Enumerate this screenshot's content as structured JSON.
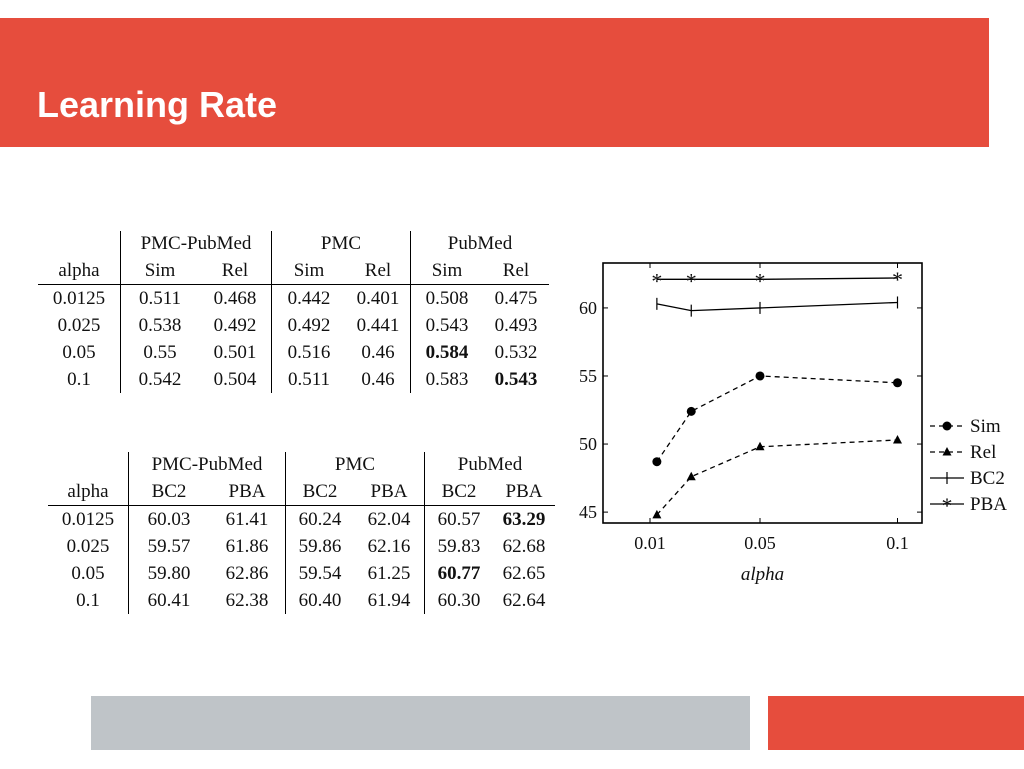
{
  "slide": {
    "title": "Learning Rate"
  },
  "table1": {
    "alpha_header": "alpha",
    "groups": [
      {
        "name": "PMC-PubMed",
        "cols": [
          "Sim",
          "Rel"
        ]
      },
      {
        "name": "PMC",
        "cols": [
          "Sim",
          "Rel"
        ]
      },
      {
        "name": "PubMed",
        "cols": [
          "Sim",
          "Rel"
        ]
      }
    ],
    "rows": [
      {
        "alpha": "0.0125",
        "values": [
          "0.511",
          "0.468",
          "0.442",
          "0.401",
          "0.508",
          "0.475"
        ],
        "bold": []
      },
      {
        "alpha": "0.025",
        "values": [
          "0.538",
          "0.492",
          "0.492",
          "0.441",
          "0.543",
          "0.493"
        ],
        "bold": []
      },
      {
        "alpha": "0.05",
        "values": [
          "0.55",
          "0.501",
          "0.516",
          "0.46",
          "0.584",
          "0.532"
        ],
        "bold": [
          4
        ]
      },
      {
        "alpha": "0.1",
        "values": [
          "0.542",
          "0.504",
          "0.511",
          "0.46",
          "0.583",
          "0.543"
        ],
        "bold": [
          5
        ]
      }
    ]
  },
  "table2": {
    "alpha_header": "alpha",
    "groups": [
      {
        "name": "PMC-PubMed",
        "cols": [
          "BC2",
          "PBA"
        ]
      },
      {
        "name": "PMC",
        "cols": [
          "BC2",
          "PBA"
        ]
      },
      {
        "name": "PubMed",
        "cols": [
          "BC2",
          "PBA"
        ]
      }
    ],
    "rows": [
      {
        "alpha": "0.0125",
        "values": [
          "60.03",
          "61.41",
          "60.24",
          "62.04",
          "60.57",
          "63.29"
        ],
        "bold": [
          5
        ]
      },
      {
        "alpha": "0.025",
        "values": [
          "59.57",
          "61.86",
          "59.86",
          "62.16",
          "59.83",
          "62.68"
        ],
        "bold": []
      },
      {
        "alpha": "0.05",
        "values": [
          "59.80",
          "62.86",
          "59.54",
          "61.25",
          "60.77",
          "62.65"
        ],
        "bold": [
          4
        ]
      },
      {
        "alpha": "0.1",
        "values": [
          "60.41",
          "62.38",
          "60.40",
          "61.94",
          "60.30",
          "62.64"
        ],
        "bold": []
      }
    ]
  },
  "chart_data": {
    "type": "line",
    "title": "",
    "xlabel": "alpha",
    "ylabel": "",
    "x": [
      0.0125,
      0.025,
      0.05,
      0.1
    ],
    "xticks": [
      0.01,
      0.05,
      0.1
    ],
    "xtick_labels": [
      "0.01",
      "0.05",
      "0.1"
    ],
    "yticks": [
      45,
      50,
      55,
      60
    ],
    "ylim": [
      44.2,
      63.3
    ],
    "grid": false,
    "legend": "right",
    "series": [
      {
        "name": "Sim",
        "values": [
          48.7,
          52.4,
          55.0,
          54.5
        ],
        "marker": "circle",
        "dashed": true
      },
      {
        "name": "Rel",
        "values": [
          44.8,
          47.6,
          49.8,
          50.3
        ],
        "marker": "triangle",
        "dashed": true
      },
      {
        "name": "BC2",
        "values": [
          60.3,
          59.8,
          60.0,
          60.4
        ],
        "marker": "vbar",
        "dashed": false
      },
      {
        "name": "PBA",
        "values": [
          62.1,
          62.1,
          62.1,
          62.2
        ],
        "marker": "star",
        "dashed": false
      }
    ]
  }
}
